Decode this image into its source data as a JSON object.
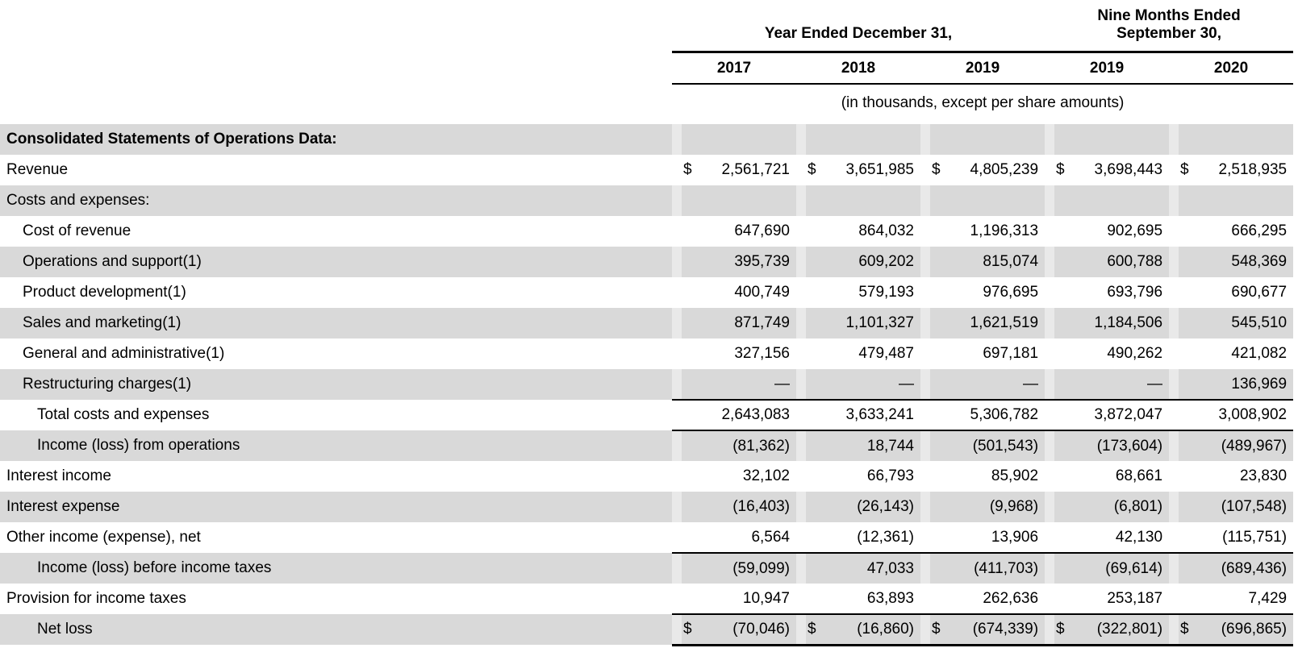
{
  "header": {
    "year_ended_title": "Year Ended December 31,",
    "nine_months_line1": "Nine Months Ended",
    "nine_months_line2": "September 30,",
    "years": [
      "2017",
      "2018",
      "2019",
      "2019",
      "2020"
    ],
    "units_note": "(in thousands, except per share amounts)"
  },
  "table": {
    "currency_symbol": "$",
    "rows": [
      {
        "label": "Consolidated Statements of Operations Data:",
        "bold": true,
        "indent": 0,
        "shaded": true,
        "dollar": false,
        "rule": null,
        "values": null
      },
      {
        "label": "Revenue",
        "bold": false,
        "indent": 0,
        "shaded": false,
        "dollar": true,
        "rule": null,
        "values": [
          "2,561,721",
          "3,651,985",
          "4,805,239",
          "3,698,443",
          "2,518,935"
        ]
      },
      {
        "label": "Costs and expenses:",
        "bold": false,
        "indent": 0,
        "shaded": true,
        "dollar": false,
        "rule": null,
        "values": null
      },
      {
        "label": "Cost of revenue",
        "bold": false,
        "indent": 1,
        "shaded": false,
        "dollar": false,
        "rule": null,
        "values": [
          "647,690",
          "864,032",
          "1,196,313",
          "902,695",
          "666,295"
        ]
      },
      {
        "label": "Operations and support(1)",
        "bold": false,
        "indent": 1,
        "shaded": true,
        "dollar": false,
        "rule": null,
        "values": [
          "395,739",
          "609,202",
          "815,074",
          "600,788",
          "548,369"
        ]
      },
      {
        "label": "Product development(1)",
        "bold": false,
        "indent": 1,
        "shaded": false,
        "dollar": false,
        "rule": null,
        "values": [
          "400,749",
          "579,193",
          "976,695",
          "693,796",
          "690,677"
        ]
      },
      {
        "label": "Sales and marketing(1)",
        "bold": false,
        "indent": 1,
        "shaded": true,
        "dollar": false,
        "rule": null,
        "values": [
          "871,749",
          "1,101,327",
          "1,621,519",
          "1,184,506",
          "545,510"
        ]
      },
      {
        "label": "General and administrative(1)",
        "bold": false,
        "indent": 1,
        "shaded": false,
        "dollar": false,
        "rule": null,
        "values": [
          "327,156",
          "479,487",
          "697,181",
          "490,262",
          "421,082"
        ]
      },
      {
        "label": "Restructuring charges(1)",
        "bold": false,
        "indent": 1,
        "shaded": true,
        "dollar": false,
        "rule": "thin",
        "values": [
          "—",
          "—",
          "—",
          "—",
          "136,969"
        ]
      },
      {
        "label": "Total costs and expenses",
        "bold": false,
        "indent": 2,
        "shaded": false,
        "dollar": false,
        "rule": "thin",
        "values": [
          "2,643,083",
          "3,633,241",
          "5,306,782",
          "3,872,047",
          "3,008,902"
        ]
      },
      {
        "label": "Income (loss) from operations",
        "bold": false,
        "indent": 2,
        "shaded": true,
        "dollar": false,
        "rule": null,
        "values": [
          "(81,362)",
          "18,744",
          "(501,543)",
          "(173,604)",
          "(489,967)"
        ]
      },
      {
        "label": "Interest income",
        "bold": false,
        "indent": 0,
        "shaded": false,
        "dollar": false,
        "rule": null,
        "values": [
          "32,102",
          "66,793",
          "85,902",
          "68,661",
          "23,830"
        ]
      },
      {
        "label": "Interest expense",
        "bold": false,
        "indent": 0,
        "shaded": true,
        "dollar": false,
        "rule": null,
        "values": [
          "(16,403)",
          "(26,143)",
          "(9,968)",
          "(6,801)",
          "(107,548)"
        ]
      },
      {
        "label": "Other income (expense), net",
        "bold": false,
        "indent": 0,
        "shaded": false,
        "dollar": false,
        "rule": "thin",
        "values": [
          "6,564",
          "(12,361)",
          "13,906",
          "42,130",
          "(115,751)"
        ]
      },
      {
        "label": "Income (loss) before income taxes",
        "bold": false,
        "indent": 2,
        "shaded": true,
        "dollar": false,
        "rule": null,
        "values": [
          "(59,099)",
          "47,033",
          "(411,703)",
          "(69,614)",
          "(689,436)"
        ]
      },
      {
        "label": "Provision for income taxes",
        "bold": false,
        "indent": 0,
        "shaded": false,
        "dollar": false,
        "rule": "thin",
        "values": [
          "10,947",
          "63,893",
          "262,636",
          "253,187",
          "7,429"
        ]
      },
      {
        "label": "Net loss",
        "bold": false,
        "indent": 2,
        "shaded": true,
        "dollar": true,
        "rule": "thick",
        "values": [
          "(70,046)",
          "(16,860)",
          "(674,339)",
          "(322,801)",
          "(696,865)"
        ]
      }
    ]
  },
  "colors": {
    "band": "#d9d9d9",
    "band_light": "#e9e9e9",
    "rule": "#000000",
    "text": "#000000",
    "background": "#ffffff"
  }
}
